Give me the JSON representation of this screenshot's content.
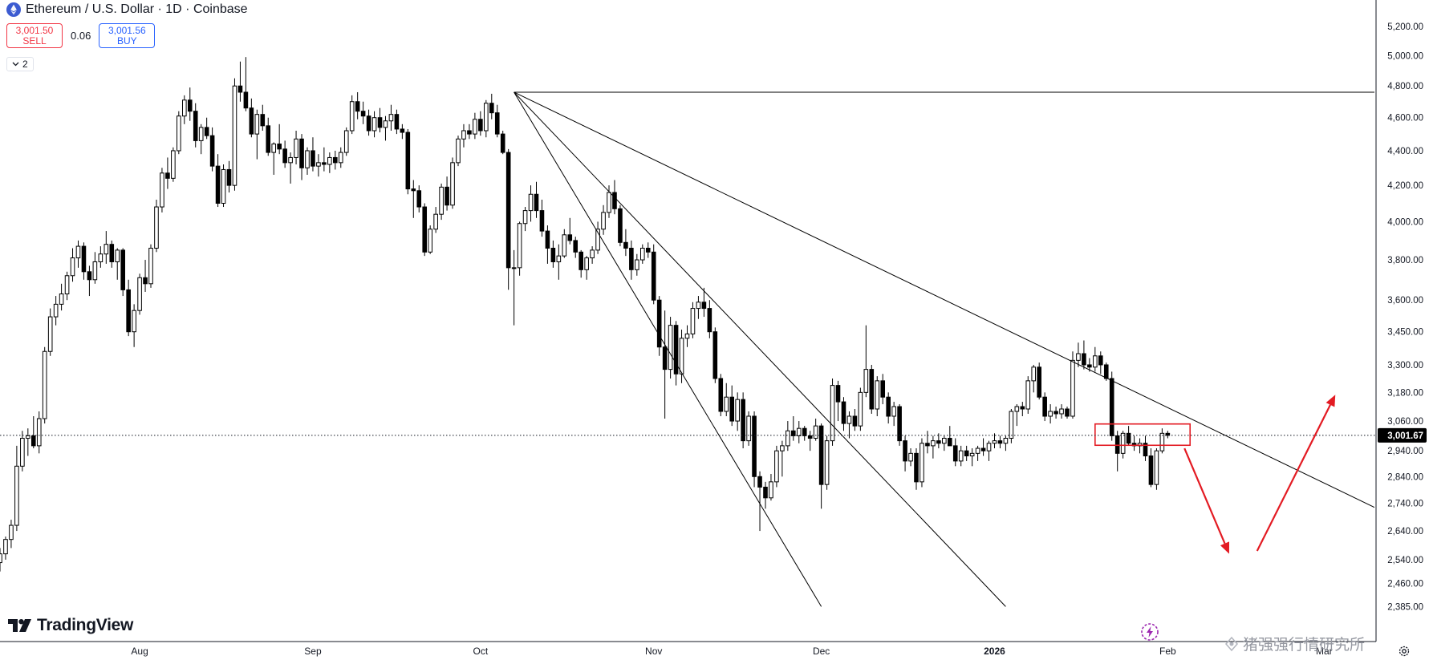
{
  "header": {
    "symbol_title": "Ethereum / U.S. Dollar · 1D · Coinbase",
    "sell_price": "3,001.50",
    "sell_label": "SELL",
    "spread": "0.06",
    "buy_price": "3,001.56",
    "buy_label": "BUY",
    "indicators_count": "2"
  },
  "branding": {
    "logo_text": "TradingView",
    "watermark_text": "猪强强行情研究所"
  },
  "colors": {
    "candle_up": "#ffffff",
    "candle_down": "#000000",
    "candle_outline": "#000000",
    "trendline": "#000000",
    "annotation": "#e31b23",
    "sell": "#f23645",
    "buy": "#2962ff",
    "last_price_label_bg": "#000000",
    "grid": "none"
  },
  "icons": [
    "ethereum-logo-icon",
    "chevron-down-icon",
    "tradingview-logo-icon",
    "lightning-icon",
    "settings-gear-icon"
  ],
  "chart_data": {
    "type": "candlestick",
    "title": "Ethereum / U.S. Dollar · 1D · Coinbase",
    "grid": false,
    "y_scale": "log",
    "ylim": [
      2330,
      5330
    ],
    "xlim": [
      "2025-07-07",
      "2026-03-10"
    ],
    "y_ticks": [
      {
        "value": 5200,
        "label": "5,200.00"
      },
      {
        "value": 5000,
        "label": "5,000.00"
      },
      {
        "value": 4800,
        "label": "4,800.00"
      },
      {
        "value": 4600,
        "label": "4,600.00"
      },
      {
        "value": 4400,
        "label": "4,400.00"
      },
      {
        "value": 4200,
        "label": "4,200.00"
      },
      {
        "value": 4000,
        "label": "4,000.00"
      },
      {
        "value": 3800,
        "label": "3,800.00"
      },
      {
        "value": 3600,
        "label": "3,600.00"
      },
      {
        "value": 3450,
        "label": "3,450.00"
      },
      {
        "value": 3300,
        "label": "3,300.00"
      },
      {
        "value": 3180,
        "label": "3,180.00"
      },
      {
        "value": 3060,
        "label": "3,060.00"
      },
      {
        "value": 2940,
        "label": "2,940.00"
      },
      {
        "value": 2840,
        "label": "2,840.00"
      },
      {
        "value": 2740,
        "label": "2,740.00"
      },
      {
        "value": 2640,
        "label": "2,640.00"
      },
      {
        "value": 2540,
        "label": "2,540.00"
      },
      {
        "value": 2460,
        "label": "2,460.00"
      },
      {
        "value": 2385,
        "label": "2,385.00"
      }
    ],
    "x_ticks": [
      {
        "date": "2025-08-01",
        "label": "Aug",
        "bold": false
      },
      {
        "date": "2025-09-01",
        "label": "Sep",
        "bold": false
      },
      {
        "date": "2025-10-01",
        "label": "Oct",
        "bold": false
      },
      {
        "date": "2025-11-01",
        "label": "Nov",
        "bold": false
      },
      {
        "date": "2025-12-01",
        "label": "Dec",
        "bold": false
      },
      {
        "date": "2026-01-01",
        "label": "2026",
        "bold": true
      },
      {
        "date": "2026-02-01",
        "label": "Feb",
        "bold": false
      },
      {
        "date": "2026-03-01",
        "label": "Mar",
        "bold": false
      }
    ],
    "last_price": {
      "value": 3001.67,
      "label": "3,001.67"
    },
    "candles_start_date": "2025-07-07",
    "ohlc": [
      [
        2530,
        2580,
        2500,
        2560
      ],
      [
        2560,
        2620,
        2540,
        2610
      ],
      [
        2610,
        2680,
        2580,
        2660
      ],
      [
        2660,
        2960,
        2640,
        2880
      ],
      [
        2880,
        3020,
        2860,
        2990
      ],
      [
        2990,
        3030,
        2920,
        3000
      ],
      [
        3000,
        3080,
        2950,
        2960
      ],
      [
        2960,
        3100,
        2930,
        3070
      ],
      [
        3070,
        3380,
        3050,
        3360
      ],
      [
        3360,
        3560,
        3340,
        3520
      ],
      [
        3520,
        3620,
        3480,
        3580
      ],
      [
        3580,
        3680,
        3550,
        3630
      ],
      [
        3630,
        3740,
        3600,
        3720
      ],
      [
        3720,
        3860,
        3690,
        3810
      ],
      [
        3810,
        3900,
        3760,
        3870
      ],
      [
        3870,
        3890,
        3700,
        3740
      ],
      [
        3740,
        3770,
        3620,
        3700
      ],
      [
        3700,
        3840,
        3680,
        3790
      ],
      [
        3790,
        3870,
        3760,
        3830
      ],
      [
        3830,
        3950,
        3780,
        3880
      ],
      [
        3880,
        3900,
        3760,
        3790
      ],
      [
        3790,
        3860,
        3700,
        3850
      ],
      [
        3850,
        3860,
        3620,
        3650
      ],
      [
        3650,
        3700,
        3430,
        3450
      ],
      [
        3450,
        3580,
        3380,
        3550
      ],
      [
        3550,
        3730,
        3530,
        3710
      ],
      [
        3710,
        3800,
        3640,
        3680
      ],
      [
        3680,
        3880,
        3660,
        3860
      ],
      [
        3860,
        4120,
        3840,
        4080
      ],
      [
        4080,
        4300,
        4050,
        4270
      ],
      [
        4270,
        4360,
        4180,
        4240
      ],
      [
        4240,
        4420,
        4220,
        4400
      ],
      [
        4400,
        4640,
        4380,
        4610
      ],
      [
        4610,
        4740,
        4560,
        4710
      ],
      [
        4710,
        4790,
        4580,
        4640
      ],
      [
        4640,
        4690,
        4420,
        4460
      ],
      [
        4460,
        4560,
        4380,
        4540
      ],
      [
        4540,
        4600,
        4470,
        4490
      ],
      [
        4490,
        4540,
        4280,
        4310
      ],
      [
        4310,
        4380,
        4080,
        4100
      ],
      [
        4100,
        4320,
        4080,
        4290
      ],
      [
        4290,
        4340,
        4160,
        4200
      ],
      [
        4200,
        4850,
        4170,
        4800
      ],
      [
        4800,
        4960,
        4700,
        4760
      ],
      [
        4760,
        4990,
        4640,
        4660
      ],
      [
        4660,
        4720,
        4480,
        4500
      ],
      [
        4500,
        4650,
        4350,
        4620
      ],
      [
        4620,
        4680,
        4520,
        4550
      ],
      [
        4550,
        4600,
        4370,
        4390
      ],
      [
        4390,
        4450,
        4260,
        4440
      ],
      [
        4440,
        4560,
        4380,
        4410
      ],
      [
        4410,
        4460,
        4300,
        4330
      ],
      [
        4330,
        4390,
        4210,
        4360
      ],
      [
        4360,
        4520,
        4320,
        4470
      ],
      [
        4470,
        4500,
        4230,
        4300
      ],
      [
        4300,
        4420,
        4260,
        4400
      ],
      [
        4400,
        4480,
        4280,
        4310
      ],
      [
        4310,
        4380,
        4250,
        4330
      ],
      [
        4330,
        4420,
        4280,
        4320
      ],
      [
        4320,
        4390,
        4270,
        4360
      ],
      [
        4360,
        4400,
        4290,
        4330
      ],
      [
        4330,
        4420,
        4300,
        4390
      ],
      [
        4390,
        4540,
        4370,
        4520
      ],
      [
        4520,
        4740,
        4500,
        4700
      ],
      [
        4700,
        4760,
        4590,
        4640
      ],
      [
        4640,
        4700,
        4560,
        4610
      ],
      [
        4610,
        4650,
        4490,
        4520
      ],
      [
        4520,
        4640,
        4480,
        4600
      ],
      [
        4600,
        4660,
        4510,
        4540
      ],
      [
        4540,
        4610,
        4460,
        4580
      ],
      [
        4580,
        4680,
        4520,
        4620
      ],
      [
        4620,
        4650,
        4500,
        4530
      ],
      [
        4530,
        4560,
        4470,
        4510
      ],
      [
        4510,
        4530,
        4150,
        4180
      ],
      [
        4180,
        4230,
        4020,
        4170
      ],
      [
        4170,
        4200,
        4050,
        4080
      ],
      [
        4080,
        4100,
        3820,
        3840
      ],
      [
        3840,
        3980,
        3830,
        3960
      ],
      [
        3960,
        4080,
        3940,
        4040
      ],
      [
        4040,
        4210,
        4010,
        4190
      ],
      [
        4190,
        4250,
        4060,
        4090
      ],
      [
        4090,
        4360,
        4070,
        4330
      ],
      [
        4330,
        4490,
        4310,
        4470
      ],
      [
        4470,
        4560,
        4420,
        4520
      ],
      [
        4520,
        4560,
        4470,
        4500
      ],
      [
        4500,
        4630,
        4470,
        4590
      ],
      [
        4590,
        4640,
        4490,
        4520
      ],
      [
        4520,
        4710,
        4480,
        4690
      ],
      [
        4690,
        4750,
        4590,
        4630
      ],
      [
        4630,
        4680,
        4480,
        4500
      ],
      [
        4500,
        4520,
        4380,
        4390
      ],
      [
        4390,
        4410,
        3650,
        3760
      ],
      [
        3760,
        3850,
        3480,
        3760
      ],
      [
        3760,
        4000,
        3720,
        3990
      ],
      [
        3990,
        4080,
        3950,
        4060
      ],
      [
        4060,
        4200,
        4000,
        4150
      ],
      [
        4150,
        4220,
        4020,
        4060
      ],
      [
        4060,
        4120,
        3920,
        3950
      ],
      [
        3950,
        3980,
        3780,
        3860
      ],
      [
        3860,
        3900,
        3760,
        3790
      ],
      [
        3790,
        3880,
        3700,
        3820
      ],
      [
        3820,
        3960,
        3810,
        3930
      ],
      [
        3930,
        4020,
        3880,
        3900
      ],
      [
        3900,
        3920,
        3810,
        3840
      ],
      [
        3840,
        3850,
        3710,
        3750
      ],
      [
        3750,
        3820,
        3700,
        3810
      ],
      [
        3810,
        3870,
        3780,
        3850
      ],
      [
        3850,
        4000,
        3830,
        3960
      ],
      [
        3960,
        4090,
        3930,
        4050
      ],
      [
        4050,
        4200,
        4020,
        4160
      ],
      [
        4160,
        4230,
        4040,
        4070
      ],
      [
        4070,
        4090,
        3870,
        3890
      ],
      [
        3890,
        3960,
        3820,
        3860
      ],
      [
        3860,
        3900,
        3700,
        3750
      ],
      [
        3750,
        3830,
        3720,
        3800
      ],
      [
        3800,
        3880,
        3780,
        3860
      ],
      [
        3860,
        3890,
        3810,
        3840
      ],
      [
        3840,
        3880,
        3580,
        3600
      ],
      [
        3600,
        3620,
        3340,
        3380
      ],
      [
        3380,
        3550,
        3070,
        3280
      ],
      [
        3280,
        3520,
        3240,
        3480
      ],
      [
        3480,
        3500,
        3210,
        3260
      ],
      [
        3260,
        3460,
        3220,
        3420
      ],
      [
        3420,
        3480,
        3380,
        3440
      ],
      [
        3440,
        3590,
        3420,
        3560
      ],
      [
        3560,
        3620,
        3510,
        3590
      ],
      [
        3590,
        3660,
        3520,
        3560
      ],
      [
        3560,
        3600,
        3420,
        3450
      ],
      [
        3450,
        3470,
        3220,
        3240
      ],
      [
        3240,
        3260,
        3080,
        3100
      ],
      [
        3100,
        3220,
        3080,
        3160
      ],
      [
        3160,
        3210,
        3040,
        3060
      ],
      [
        3060,
        3180,
        3020,
        3150
      ],
      [
        3150,
        3180,
        2950,
        2980
      ],
      [
        2980,
        3100,
        2960,
        3080
      ],
      [
        3080,
        3100,
        2800,
        2840
      ],
      [
        2840,
        2860,
        2640,
        2800
      ],
      [
        2800,
        2820,
        2720,
        2760
      ],
      [
        2760,
        2850,
        2750,
        2820
      ],
      [
        2820,
        2960,
        2800,
        2940
      ],
      [
        2940,
        2980,
        2840,
        2960
      ],
      [
        2960,
        3060,
        2940,
        3020
      ],
      [
        3020,
        3080,
        2980,
        3000
      ],
      [
        3000,
        3060,
        2970,
        3030
      ],
      [
        3030,
        3040,
        2980,
        3000
      ],
      [
        3000,
        3020,
        2940,
        2990
      ],
      [
        2990,
        3070,
        2980,
        3040
      ],
      [
        3040,
        3050,
        2720,
        2810
      ],
      [
        2810,
        3000,
        2790,
        2980
      ],
      [
        2980,
        3240,
        2960,
        3210
      ],
      [
        3210,
        3230,
        3060,
        3140
      ],
      [
        3140,
        3160,
        3020,
        3050
      ],
      [
        3050,
        3100,
        2990,
        3080
      ],
      [
        3080,
        3110,
        3020,
        3040
      ],
      [
        3040,
        3200,
        3020,
        3180
      ],
      [
        3180,
        3480,
        3160,
        3280
      ],
      [
        3280,
        3300,
        3090,
        3110
      ],
      [
        3110,
        3250,
        3080,
        3230
      ],
      [
        3230,
        3260,
        3130,
        3160
      ],
      [
        3160,
        3180,
        3050,
        3080
      ],
      [
        3080,
        3140,
        3040,
        3120
      ],
      [
        3120,
        3130,
        2960,
        2980
      ],
      [
        2980,
        3000,
        2860,
        2900
      ],
      [
        2900,
        2950,
        2880,
        2930
      ],
      [
        2930,
        2950,
        2790,
        2820
      ],
      [
        2820,
        2990,
        2800,
        2970
      ],
      [
        2970,
        3020,
        2930,
        2960
      ],
      [
        2960,
        3000,
        2910,
        2980
      ],
      [
        2980,
        3010,
        2950,
        2970
      ],
      [
        2970,
        3000,
        2940,
        2990
      ],
      [
        2990,
        3040,
        2960,
        2960
      ],
      [
        2960,
        2990,
        2880,
        2900
      ],
      [
        2900,
        2960,
        2880,
        2940
      ],
      [
        2940,
        2960,
        2900,
        2920
      ],
      [
        2920,
        2950,
        2880,
        2930
      ],
      [
        2930,
        2960,
        2900,
        2950
      ],
      [
        2950,
        2990,
        2920,
        2940
      ],
      [
        2940,
        2980,
        2900,
        2970
      ],
      [
        2970,
        3010,
        2950,
        2980
      ],
      [
        2980,
        3000,
        2950,
        2970
      ],
      [
        2970,
        3000,
        2940,
        2990
      ],
      [
        2990,
        3110,
        2970,
        3100
      ],
      [
        3100,
        3130,
        3040,
        3120
      ],
      [
        3120,
        3140,
        3080,
        3110
      ],
      [
        3110,
        3250,
        3090,
        3230
      ],
      [
        3230,
        3300,
        3180,
        3290
      ],
      [
        3290,
        3310,
        3150,
        3160
      ],
      [
        3160,
        3180,
        3060,
        3080
      ],
      [
        3080,
        3130,
        3050,
        3100
      ],
      [
        3100,
        3120,
        3070,
        3090
      ],
      [
        3090,
        3130,
        3070,
        3110
      ],
      [
        3110,
        3120,
        3070,
        3080
      ],
      [
        3080,
        3360,
        3070,
        3320
      ],
      [
        3320,
        3400,
        3290,
        3350
      ],
      [
        3350,
        3410,
        3280,
        3300
      ],
      [
        3300,
        3330,
        3270,
        3290
      ],
      [
        3290,
        3380,
        3270,
        3340
      ],
      [
        3340,
        3360,
        3260,
        3300
      ],
      [
        3300,
        3310,
        3230,
        3240
      ],
      [
        3240,
        3270,
        2980,
        3000
      ],
      [
        3000,
        3020,
        2860,
        2930
      ],
      [
        2930,
        3020,
        2910,
        3010
      ],
      [
        3010,
        3040,
        2960,
        2970
      ],
      [
        2970,
        3000,
        2940,
        2960
      ],
      [
        2960,
        2990,
        2930,
        2970
      ],
      [
        2970,
        3000,
        2900,
        2920
      ],
      [
        2920,
        2950,
        2800,
        2810
      ],
      [
        2810,
        2950,
        2790,
        2940
      ],
      [
        2940,
        3030,
        2930,
        3010
      ],
      [
        3010,
        3020,
        2990,
        3001.67
      ]
    ],
    "drawings": {
      "horizontal_line": {
        "price": 4760
      },
      "trendlines": [
        {
          "from": [
            "2025-10-07",
            4760
          ],
          "to": [
            "2026-03-10",
            2725
          ]
        },
        {
          "from": [
            "2025-10-07",
            4760
          ],
          "to": [
            "2026-01-03",
            2385
          ]
        },
        {
          "from": [
            "2025-10-07",
            4760
          ],
          "to": [
            "2025-12-01",
            2385
          ]
        }
      ],
      "zone_box": {
        "from": [
          "2026-01-19",
          3048
        ],
        "to": [
          "2026-02-05",
          2962
        ]
      },
      "arrows": [
        {
          "from": [
            "2026-02-04",
            2950
          ],
          "to": [
            "2026-02-12",
            2560
          ]
        },
        {
          "from": [
            "2026-02-17",
            2570
          ],
          "to": [
            "2026-03-03",
            3170
          ]
        }
      ]
    }
  }
}
